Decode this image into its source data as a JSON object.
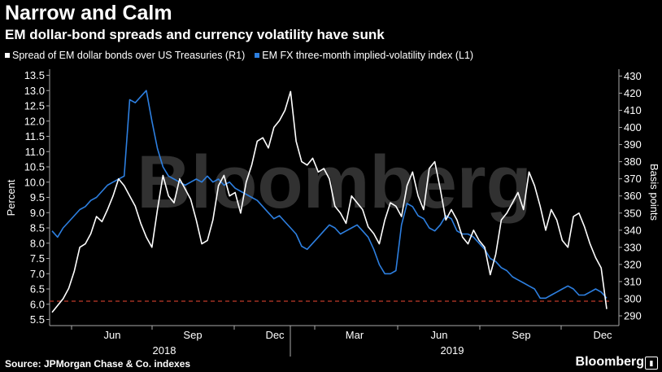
{
  "title": "Narrow and Calm",
  "subtitle": "EM dollar-bond spreads and currency volatility have sunk",
  "legend": [
    {
      "label": "Spread of EM dollar bonds over US Treasuries (R1)",
      "color": "#ffffff"
    },
    {
      "label": "EM FX three-month implied-volatility index (L1)",
      "color": "#2d7fe0"
    }
  ],
  "source": "Source: JPMorgan Chase & Co. indexes",
  "brand": "Bloomberg",
  "watermark": "Bloomberg",
  "chart_data": {
    "type": "line",
    "x_ticks": [
      "Jun",
      "Sep",
      "Dec",
      "Mar",
      "Jun",
      "Sep",
      "Dec"
    ],
    "year_labels": [
      "2018",
      "2019"
    ],
    "ylabel_left": "Percent",
    "ylabel_right": "Basis points",
    "left_ticks": [
      "13.5",
      "13.0",
      "12.5",
      "12.0",
      "11.5",
      "11.0",
      "10.5",
      "10.0",
      "9.5",
      "9.0",
      "8.5",
      "8.0",
      "7.5",
      "7.0",
      "6.5",
      "6.0",
      "5.5"
    ],
    "right_ticks": [
      "430",
      "420",
      "410",
      "400",
      "390",
      "380",
      "370",
      "360",
      "350",
      "340",
      "330",
      "320",
      "310",
      "300",
      "290"
    ],
    "ylim_left": [
      5.3,
      13.7
    ],
    "ylim_right": [
      284.3,
      434.0
    ],
    "reference_line": {
      "axis": "left",
      "value": 6.1,
      "color": "#c0392b",
      "style": "dashed"
    },
    "series": [
      {
        "name": "Spread of EM dollar bonds over US Treasuries (R1)",
        "axis": "right",
        "color": "#ffffff",
        "x": [
          0,
          1,
          2,
          3,
          4,
          5,
          6,
          7,
          8,
          9,
          10,
          11,
          12,
          13,
          14,
          15,
          16,
          17,
          18,
          19,
          20,
          21,
          22,
          23,
          24,
          25,
          26,
          27,
          28,
          29,
          30,
          31,
          32,
          33,
          34,
          35,
          36,
          37,
          38,
          39,
          40,
          41,
          42,
          43,
          44,
          45,
          46,
          47,
          48,
          49,
          50,
          51,
          52,
          53,
          54,
          55,
          56,
          57,
          58,
          59,
          60,
          61,
          62,
          63,
          64,
          65,
          66,
          67,
          68,
          69,
          70,
          71,
          72,
          73,
          74,
          75,
          76,
          77,
          78,
          79,
          80,
          81,
          82,
          83,
          84,
          85,
          86,
          87,
          88,
          89,
          90,
          91,
          92,
          93,
          94,
          95,
          96,
          97,
          98,
          99,
          100
        ],
        "values": [
          292,
          296,
          300,
          306,
          316,
          330,
          332,
          338,
          348,
          345,
          352,
          360,
          370,
          366,
          360,
          354,
          344,
          336,
          330,
          352,
          372,
          360,
          356,
          370,
          364,
          358,
          346,
          332,
          334,
          346,
          366,
          372,
          360,
          362,
          350,
          368,
          378,
          392,
          394,
          388,
          400,
          404,
          410,
          421,
          392,
          380,
          378,
          382,
          374,
          376,
          370,
          354,
          350,
          344,
          360,
          356,
          352,
          342,
          338,
          332,
          346,
          356,
          354,
          348,
          366,
          374,
          360,
          352,
          376,
          380,
          364,
          346,
          352,
          346,
          336,
          332,
          340,
          334,
          330,
          314,
          326,
          346,
          350,
          356,
          362,
          352,
          374,
          366,
          354,
          340,
          352,
          346,
          334,
          330,
          348,
          350,
          342,
          332,
          324,
          318,
          294
        ]
      },
      {
        "name": "EM FX three-month implied-volatility index (L1)",
        "axis": "left",
        "color": "#2d7fe0",
        "x": [
          0,
          1,
          2,
          3,
          4,
          5,
          6,
          7,
          8,
          9,
          10,
          11,
          12,
          13,
          14,
          15,
          16,
          17,
          18,
          19,
          20,
          21,
          22,
          23,
          24,
          25,
          26,
          27,
          28,
          29,
          30,
          31,
          32,
          33,
          34,
          35,
          36,
          37,
          38,
          39,
          40,
          41,
          42,
          43,
          44,
          45,
          46,
          47,
          48,
          49,
          50,
          51,
          52,
          53,
          54,
          55,
          56,
          57,
          58,
          59,
          60,
          61,
          62,
          63,
          64,
          65,
          66,
          67,
          68,
          69,
          70,
          71,
          72,
          73,
          74,
          75,
          76,
          77,
          78,
          79,
          80,
          81,
          82,
          83,
          84,
          85,
          86,
          87,
          88,
          89,
          90,
          91,
          92,
          93,
          94,
          95,
          96,
          97,
          98,
          99,
          100
        ],
        "values": [
          8.4,
          8.2,
          8.5,
          8.7,
          8.9,
          9.1,
          9.2,
          9.4,
          9.5,
          9.7,
          9.9,
          10.0,
          10.1,
          10.2,
          12.7,
          12.6,
          12.8,
          13.0,
          12.0,
          11.1,
          10.5,
          10.2,
          10.1,
          10.0,
          9.9,
          10.0,
          10.1,
          10.0,
          10.2,
          10.0,
          10.1,
          9.9,
          10.0,
          9.8,
          9.7,
          9.6,
          9.5,
          9.4,
          9.2,
          9.0,
          8.8,
          8.9,
          8.7,
          8.5,
          8.3,
          7.9,
          7.8,
          8.0,
          8.2,
          8.4,
          8.6,
          8.5,
          8.3,
          8.4,
          8.5,
          8.6,
          8.4,
          8.2,
          7.8,
          7.3,
          7.0,
          7.0,
          7.1,
          8.6,
          9.3,
          9.2,
          8.9,
          8.8,
          8.5,
          8.4,
          8.6,
          8.9,
          8.8,
          8.4,
          8.3,
          8.3,
          8.2,
          8.0,
          7.8,
          7.5,
          7.4,
          7.2,
          7.1,
          6.9,
          6.8,
          6.7,
          6.6,
          6.5,
          6.2,
          6.2,
          6.3,
          6.4,
          6.5,
          6.6,
          6.5,
          6.3,
          6.3,
          6.4,
          6.5,
          6.4,
          6.2
        ]
      }
    ]
  }
}
